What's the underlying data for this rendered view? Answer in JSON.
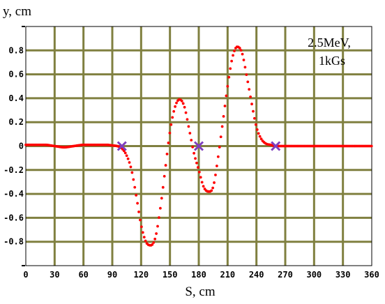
{
  "chart_data": {
    "type": "scatter",
    "title": "",
    "xlabel": "S, cm",
    "ylabel": "y, cm",
    "xlim": [
      0,
      360
    ],
    "ylim": [
      -1,
      1
    ],
    "x_ticks": [
      "0",
      "30",
      "60",
      "90",
      "120",
      "150",
      "180",
      "210",
      "240",
      "270",
      "300",
      "330",
      "360"
    ],
    "y_ticks": [
      "1",
      "0.8",
      "0.6",
      "0.4",
      "0.2",
      "0",
      "-0.2",
      "-0.4",
      "-0.6",
      "-0.8",
      "-1"
    ],
    "y_tick_display": [
      "",
      "0.8",
      "0.6",
      "0.4",
      "0.2",
      "0",
      "-0.2",
      "-0.4",
      "-0.6",
      "-0.8",
      ""
    ],
    "grid": true,
    "annotation": [
      "2.5MeV,",
      "1kGs"
    ],
    "colors": {
      "plot_background": "#ffffff",
      "grid": "#808040",
      "series": "#ff0000",
      "markers": "#7f3fbf"
    },
    "series": [
      {
        "marker": "dot",
        "x": [
          0,
          10,
          20,
          30,
          40,
          50,
          60,
          70,
          80,
          85,
          90,
          95,
          100,
          105,
          110,
          115,
          120,
          125,
          130,
          135,
          140,
          145,
          150,
          155,
          160,
          165,
          170,
          175,
          180,
          185,
          190,
          195,
          200,
          205,
          210,
          215,
          220,
          225,
          230,
          235,
          240,
          245,
          250,
          255,
          260,
          270,
          280,
          290,
          300,
          320,
          340,
          360
        ],
        "y": [
          0.01,
          0.01,
          0.01,
          0.0,
          -0.01,
          0.0,
          0.01,
          0.01,
          0.01,
          0.01,
          0.005,
          0.0,
          -0.02,
          -0.08,
          -0.2,
          -0.42,
          -0.66,
          -0.8,
          -0.83,
          -0.76,
          -0.52,
          -0.2,
          0.12,
          0.32,
          0.39,
          0.33,
          0.14,
          -0.06,
          -0.2,
          -0.34,
          -0.38,
          -0.34,
          -0.1,
          0.2,
          0.5,
          0.74,
          0.83,
          0.78,
          0.58,
          0.36,
          0.16,
          0.06,
          0.02,
          0.01,
          0.0,
          0.0,
          0.0,
          0.0,
          0.0,
          0.0,
          0.0,
          0.0
        ]
      },
      {
        "marker": "x",
        "x": [
          100,
          180,
          260
        ],
        "y": [
          0,
          0,
          0
        ]
      }
    ]
  }
}
